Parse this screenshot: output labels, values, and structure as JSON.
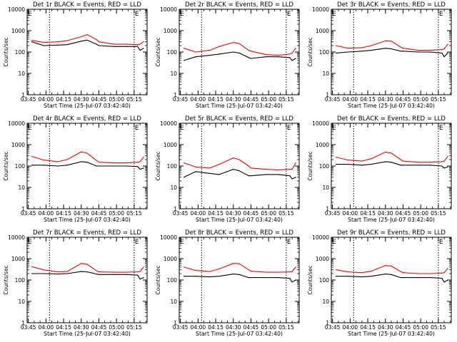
{
  "chart_data": {
    "type": "line",
    "time_ticks": [
      "03:45",
      "04:00",
      "04:15",
      "04:30",
      "04:45",
      "05:00",
      "05:15"
    ],
    "xlabel": "Start Time (25-Jul-07 03:42:40)",
    "ylabel": "Counts/sec",
    "y_ticks": [
      "1",
      "10",
      "100",
      "1000",
      "10000"
    ],
    "y_scale": "log",
    "ylim": [
      1,
      10000
    ],
    "x_minutes": [
      3,
      13,
      25,
      33,
      45,
      50,
      58,
      60,
      73,
      83,
      93,
      95,
      98
    ],
    "e_marker": "E",
    "colors": {
      "events": "#000000",
      "lld": "#ff0000"
    },
    "panels": [
      {
        "title": "Det 1r BLACK = Events, RED = LLD",
        "lld": [
          350,
          280,
          300,
          340,
          520,
          650,
          380,
          300,
          230,
          230,
          220,
          230,
          310
        ],
        "events": [
          300,
          200,
          210,
          220,
          320,
          360,
          230,
          200,
          180,
          180,
          180,
          120,
          150
        ]
      },
      {
        "title": "Det 2r BLACK = Events, RED = LLD",
        "lld": [
          150,
          100,
          120,
          180,
          280,
          250,
          120,
          110,
          75,
          70,
          80,
          90,
          150
        ],
        "events": [
          40,
          60,
          70,
          80,
          100,
          90,
          55,
          50,
          60,
          60,
          55,
          40,
          50
        ]
      },
      {
        "title": "Det 3r BLACK = Events, RED = LLD",
        "lld": [
          200,
          150,
          160,
          200,
          330,
          320,
          170,
          150,
          120,
          120,
          130,
          140,
          230
        ],
        "events": [
          90,
          100,
          110,
          120,
          150,
          140,
          110,
          110,
          100,
          100,
          90,
          60,
          90
        ]
      },
      {
        "title": "Det 4r BLACK = Events, RED = LLD",
        "lld": [
          280,
          190,
          160,
          200,
          460,
          400,
          180,
          150,
          140,
          140,
          150,
          160,
          260
        ],
        "events": [
          110,
          110,
          100,
          110,
          160,
          150,
          100,
          100,
          100,
          100,
          95,
          70,
          80
        ]
      },
      {
        "title": "Det 5r BLACK = Events, RED = LLD",
        "lld": [
          140,
          90,
          80,
          120,
          240,
          200,
          100,
          80,
          70,
          65,
          70,
          70,
          140
        ],
        "events": [
          30,
          55,
          45,
          40,
          70,
          60,
          35,
          35,
          40,
          40,
          35,
          25,
          30
        ]
      },
      {
        "title": "Det 6r BLACK = Events, RED = LLD",
        "lld": [
          260,
          190,
          170,
          220,
          450,
          400,
          200,
          170,
          150,
          150,
          160,
          170,
          280
        ],
        "events": [
          120,
          120,
          110,
          120,
          160,
          150,
          110,
          110,
          110,
          110,
          100,
          80,
          90
        ]
      },
      {
        "title": "Det 7r BLACK = Events, RED = LLD",
        "lld": [
          420,
          300,
          240,
          250,
          600,
          550,
          270,
          240,
          230,
          230,
          240,
          250,
          400
        ],
        "events": [
          200,
          200,
          190,
          200,
          250,
          240,
          190,
          180,
          180,
          180,
          170,
          110,
          130
        ]
      },
      {
        "title": "Det 8r BLACK = Events, RED = LLD",
        "lld": [
          400,
          280,
          250,
          330,
          600,
          580,
          300,
          260,
          230,
          230,
          240,
          250,
          400
        ],
        "events": [
          150,
          150,
          140,
          150,
          190,
          180,
          130,
          130,
          130,
          130,
          120,
          80,
          100
        ]
      },
      {
        "title": "Det 9r BLACK = Events, RED = LLD",
        "lld": [
          300,
          240,
          220,
          260,
          480,
          450,
          250,
          220,
          200,
          200,
          210,
          220,
          350
        ],
        "events": [
          150,
          150,
          140,
          150,
          190,
          180,
          130,
          130,
          130,
          130,
          120,
          80,
          100
        ]
      }
    ]
  }
}
